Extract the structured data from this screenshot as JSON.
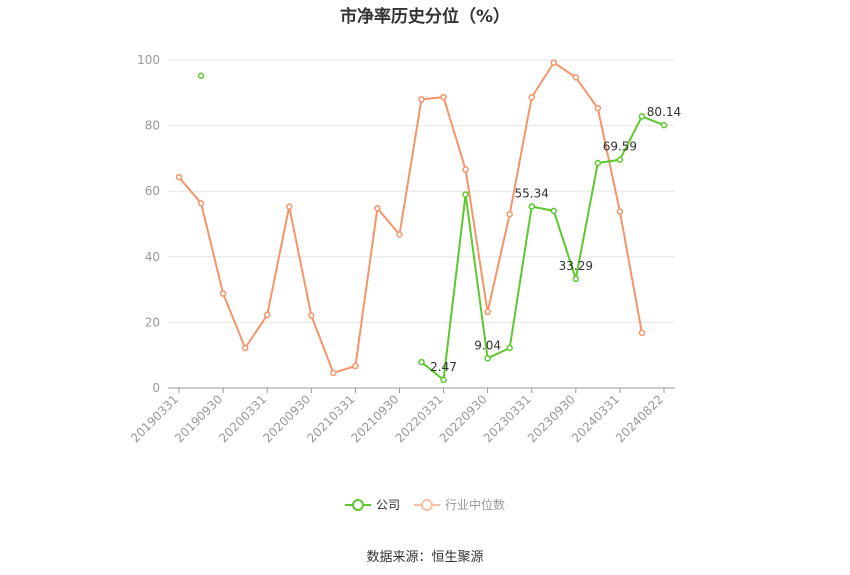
{
  "chart_data": {
    "type": "line",
    "title": "市净率历史分位（%）",
    "categories": [
      "20190331",
      "20190630",
      "20190930",
      "20191231",
      "20200331",
      "20200630",
      "20200930",
      "20201231",
      "20210331",
      "20210630",
      "20210930",
      "20211231",
      "20220331",
      "20220630",
      "20220930",
      "20221231",
      "20230331",
      "20230630",
      "20230930",
      "20231231",
      "20240331",
      "20240630",
      "20240822"
    ],
    "tick_labels": [
      "20190331",
      "20190930",
      "20200331",
      "20200930",
      "20210331",
      "20210930",
      "20220331",
      "20220930",
      "20230331",
      "20230930",
      "20240331",
      "20240822"
    ],
    "y_ticks": [
      0,
      20,
      40,
      60,
      80,
      100
    ],
    "ylim": [
      0,
      100
    ],
    "grid": true,
    "legend_position": "bottom",
    "series": [
      {
        "name": "公司",
        "color": "#5cc92e",
        "values": [
          null,
          95.2,
          null,
          null,
          null,
          null,
          null,
          null,
          null,
          null,
          null,
          7.9,
          2.47,
          59.0,
          9.04,
          12.2,
          55.34,
          54.0,
          33.29,
          68.6,
          69.59,
          82.8,
          80.14
        ]
      },
      {
        "name": "行业中位数",
        "color": "#f4956a",
        "values": [
          64.3,
          56.3,
          28.8,
          12.2,
          22.3,
          55.3,
          22.1,
          4.6,
          6.7,
          54.8,
          46.8,
          88.0,
          88.7,
          66.6,
          23.2,
          53.0,
          88.6,
          99.2,
          94.7,
          85.3,
          53.8,
          16.8,
          null
        ]
      }
    ],
    "annotations": [
      {
        "series": "公司",
        "x": "20220331",
        "label": "2.47"
      },
      {
        "series": "公司",
        "x": "20220930",
        "label": "9.04"
      },
      {
        "series": "公司",
        "x": "20230331",
        "label": "55.34"
      },
      {
        "series": "公司",
        "x": "20230930",
        "label": "33.29"
      },
      {
        "series": "公司",
        "x": "20240331",
        "label": "69.59"
      },
      {
        "series": "公司",
        "x": "20240822",
        "label": "80.14"
      }
    ]
  },
  "legend": {
    "company_label": "公司",
    "industry_label": "行业中位数"
  },
  "source_text": "数据来源：恒生聚源"
}
